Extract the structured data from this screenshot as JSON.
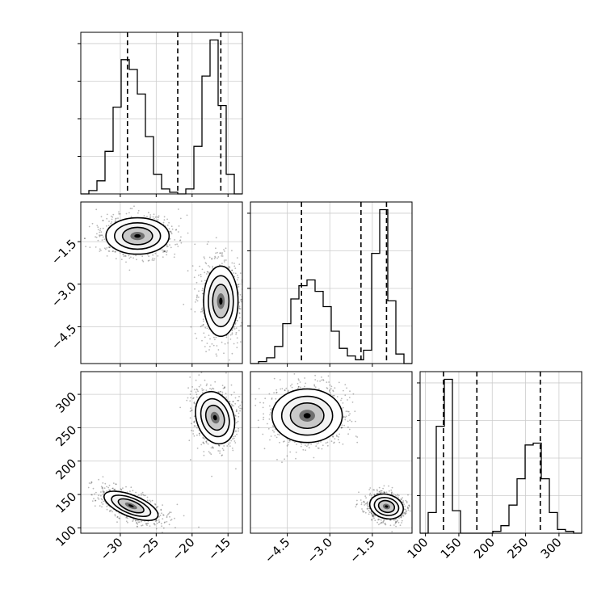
{
  "chart_data": {
    "type": "corner",
    "parameters": [
      {
        "ticks": [
          -30,
          -25,
          -20,
          -15
        ],
        "tick_labels": [
          "−30",
          "−25",
          "−20",
          "−15"
        ]
      },
      {
        "ticks": [
          -4.5,
          -3.0,
          -1.5
        ],
        "tick_labels": [
          "−4.5",
          "−3.0",
          "−1.5"
        ]
      },
      {
        "ticks": [
          100,
          150,
          200,
          250,
          300
        ],
        "tick_labels": [
          "100",
          "150",
          "200",
          "250",
          "300"
        ]
      }
    ],
    "ranges": [
      [
        -35.5,
        -13.0
      ],
      [
        -5.8,
        -0.1
      ],
      [
        92,
        334
      ]
    ],
    "quantile_lines": [
      [
        -29,
        -22,
        -16
      ],
      [
        -4.0,
        -1.9,
        -1.0
      ],
      [
        127,
        177,
        272
      ]
    ],
    "histograms": [
      {
        "edges": [
          -35.5,
          -34.375,
          -33.25,
          -32.125,
          -31.0,
          -29.875,
          -28.75,
          -27.625,
          -26.5,
          -25.375,
          -24.25,
          -23.125,
          -22.0,
          -20.875,
          -19.75,
          -18.625,
          -17.5,
          -16.375,
          -15.25,
          -14.125,
          -13.0
        ],
        "counts": [
          0,
          2,
          8,
          26,
          53,
          82,
          76,
          61,
          35,
          12,
          3,
          1,
          0,
          3,
          29,
          72,
          94,
          54,
          12,
          0
        ]
      },
      {
        "edges": [
          -5.8,
          -5.515,
          -5.23,
          -4.945,
          -4.66,
          -4.375,
          -4.09,
          -3.805,
          -3.52,
          -3.235,
          -2.95,
          -2.665,
          -2.38,
          -2.095,
          -1.81,
          -1.525,
          -1.24,
          -0.955,
          -0.67,
          -0.385,
          -0.1
        ],
        "counts": [
          0,
          1,
          3,
          9,
          21,
          34,
          41,
          44,
          38,
          30,
          17,
          8,
          4,
          2,
          7,
          58,
          81,
          33,
          5,
          0
        ]
      },
      {
        "edges": [
          92,
          104.1,
          116.2,
          128.3,
          140.4,
          152.5,
          164.6,
          176.7,
          188.8,
          200.9,
          213.0,
          225.1,
          237.2,
          249.3,
          261.4,
          273.5,
          285.6,
          297.7,
          309.8,
          321.9,
          334
        ],
        "counts": [
          0,
          11,
          57,
          82,
          12,
          0,
          0,
          0,
          0,
          1,
          4,
          15,
          29,
          47,
          48,
          29,
          11,
          2,
          1,
          0
        ]
      }
    ],
    "modes_2d": [
      {
        "pair": [
          0,
          1
        ],
        "modes": [
          {
            "center": [
              -27.6,
              -1.3
            ],
            "sd": [
              2.2,
              0.32
            ]
          },
          {
            "center": [
              -16.0,
              -3.6
            ],
            "sd": [
              1.2,
              0.62
            ]
          }
        ]
      },
      {
        "pair": [
          0,
          2
        ],
        "modes": [
          {
            "center": [
              -16.8,
              265
            ],
            "sd": [
              1.3,
              20
            ]
          },
          {
            "center": [
              -28.5,
              133
            ],
            "sd": [
              2.0,
              8
            ]
          }
        ]
      },
      {
        "pair": [
          1,
          2
        ],
        "modes": [
          {
            "center": [
              -3.8,
              268
            ],
            "sd": [
              0.62,
              20
            ]
          },
          {
            "center": [
              -1.0,
              132
            ],
            "sd": [
              0.3,
              9
            ]
          }
        ]
      }
    ]
  }
}
